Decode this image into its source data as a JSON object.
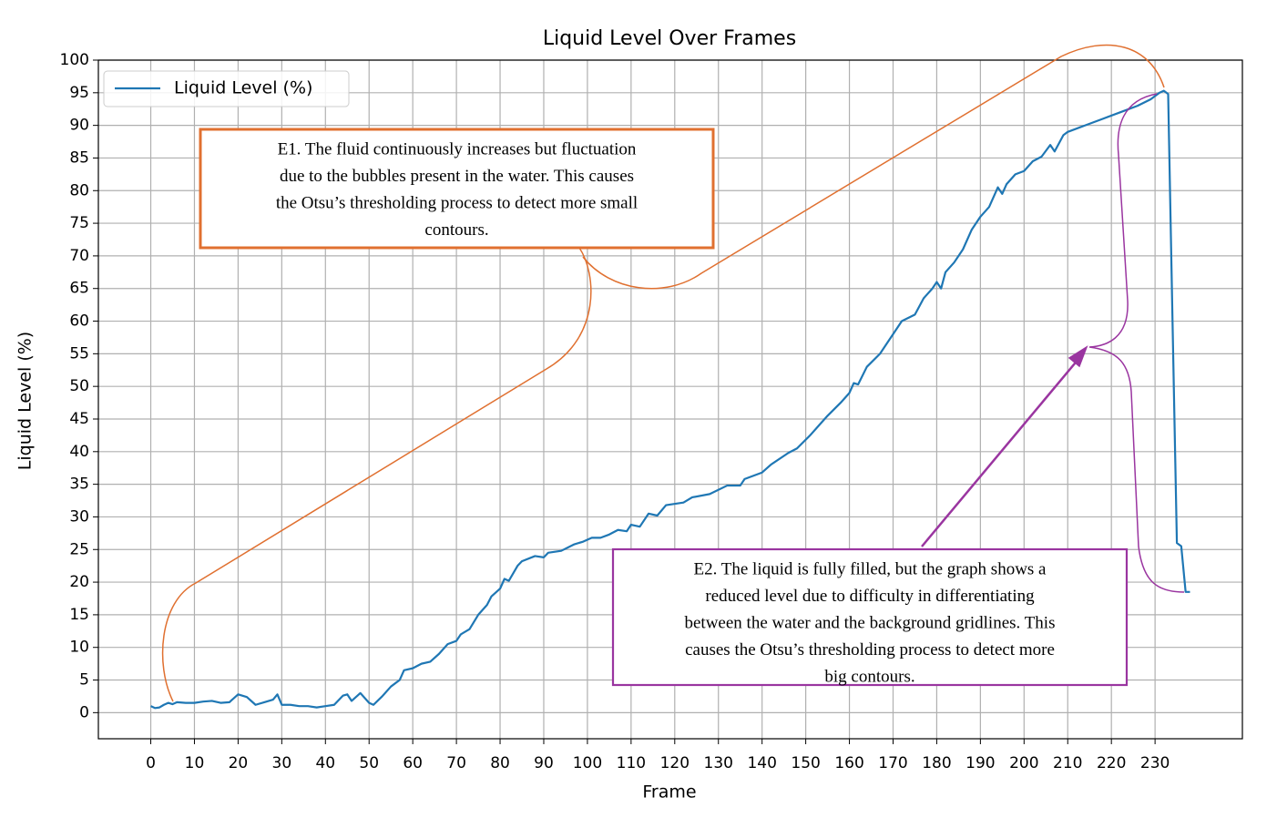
{
  "chart_data": {
    "type": "line",
    "title": "Liquid Level Over Frames",
    "xlabel": "Frame",
    "ylabel": "Liquid Level (%)",
    "x": [
      0,
      1,
      2,
      3,
      4,
      5,
      6,
      8,
      10,
      12,
      14,
      16,
      18,
      20,
      22,
      24,
      26,
      28,
      29,
      30,
      32,
      34,
      36,
      38,
      40,
      42,
      44,
      45,
      46,
      48,
      50,
      51,
      53,
      55,
      57,
      58,
      60,
      62,
      64,
      66,
      68,
      70,
      71,
      73,
      75,
      77,
      78,
      80,
      81,
      82,
      84,
      85,
      88,
      90,
      91,
      94,
      97,
      99,
      101,
      103,
      105,
      107,
      109,
      110,
      112,
      114,
      116,
      118,
      122,
      124,
      128,
      132,
      135,
      136,
      140,
      142,
      146,
      148,
      151,
      153,
      155,
      158,
      160,
      161,
      162,
      164,
      167,
      169,
      170,
      172,
      175,
      177,
      179,
      180,
      181,
      182,
      184,
      186,
      188,
      190,
      192,
      194,
      195,
      196,
      198,
      200,
      202,
      204,
      206,
      207,
      209,
      210,
      214,
      218,
      222,
      226,
      229,
      231,
      232,
      233,
      234,
      235,
      236,
      237,
      238
    ],
    "series": [
      {
        "name": "Liquid Level (%)",
        "color": "#1f77b4",
        "values": [
          1.0,
          0.7,
          0.8,
          1.2,
          1.5,
          1.3,
          1.6,
          1.5,
          1.5,
          1.7,
          1.8,
          1.5,
          1.6,
          2.8,
          2.4,
          1.2,
          1.6,
          2.0,
          2.8,
          1.2,
          1.2,
          1.0,
          1.0,
          0.8,
          1.0,
          1.2,
          2.6,
          2.8,
          1.8,
          3.0,
          1.5,
          1.2,
          2.5,
          4.0,
          5.0,
          6.5,
          6.8,
          7.5,
          7.8,
          9.0,
          10.5,
          11.0,
          12.0,
          12.8,
          15.0,
          16.5,
          17.8,
          19.0,
          20.5,
          20.2,
          22.5,
          23.2,
          24.0,
          23.8,
          24.5,
          24.8,
          25.8,
          26.2,
          26.8,
          26.8,
          27.3,
          28.0,
          27.8,
          28.8,
          28.5,
          30.5,
          30.2,
          31.8,
          32.2,
          33.0,
          33.5,
          34.8,
          34.8,
          35.8,
          36.8,
          38.0,
          39.8,
          40.5,
          42.5,
          44.0,
          45.5,
          47.5,
          49.0,
          50.5,
          50.3,
          53.0,
          55.0,
          57.0,
          58.0,
          60.0,
          61.0,
          63.5,
          65.0,
          66.0,
          65.0,
          67.5,
          69.0,
          71.0,
          74.0,
          76.0,
          77.5,
          80.5,
          79.5,
          81.0,
          82.5,
          83.0,
          84.5,
          85.2,
          87.0,
          86.0,
          88.5,
          89.0,
          90.0,
          91.0,
          92.0,
          93.0,
          94.0,
          95.0,
          95.3,
          94.8,
          60.0,
          26.0,
          25.5,
          18.5,
          18.5
        ]
      }
    ],
    "xlim": [
      -12,
      250
    ],
    "ylim": [
      -4,
      100
    ],
    "xticks": [
      0,
      10,
      20,
      30,
      40,
      50,
      60,
      70,
      80,
      90,
      100,
      110,
      120,
      130,
      140,
      150,
      160,
      170,
      180,
      190,
      200,
      210,
      220,
      230
    ],
    "yticks": [
      0,
      5,
      10,
      15,
      20,
      25,
      30,
      35,
      40,
      45,
      50,
      55,
      60,
      65,
      70,
      75,
      80,
      85,
      90,
      95,
      100
    ],
    "grid": true,
    "legend": "upper-left",
    "annotations": [
      {
        "lines": [
          "E1. The fluid continuously increases but fluctuation",
          "due to the bubbles present in the water. This causes",
          "the Otsu’s thresholding process to detect more small",
          "contours."
        ],
        "color": "#e07030"
      },
      {
        "lines": [
          "E2. The liquid is fully filled, but the graph shows a",
          "reduced level due to difficulty in differentiating",
          "between the water and the background gridlines. This",
          "causes the Otsu’s thresholding process to detect more",
          "big  contours."
        ],
        "color": "#9a35a0"
      }
    ]
  }
}
